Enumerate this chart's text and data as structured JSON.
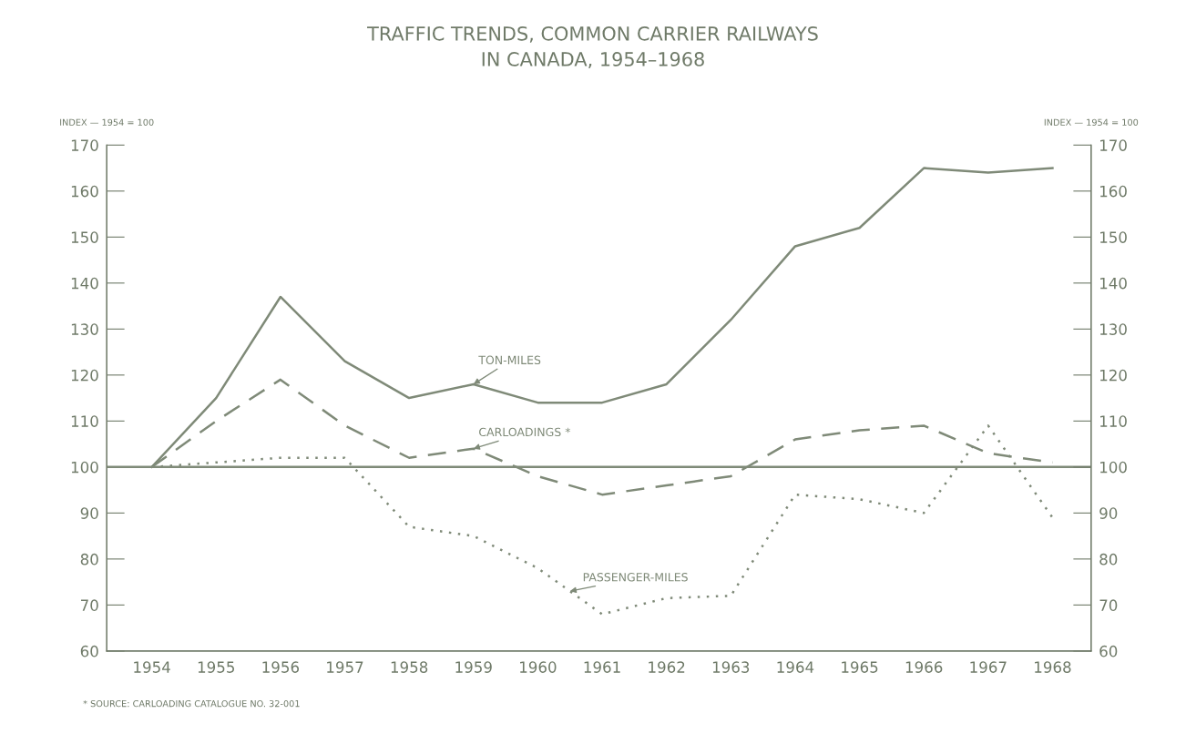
{
  "chart_data": {
    "type": "line",
    "title": "TRAFFIC TRENDS, COMMON CARRIER RAILWAYS\nIN CANADA, 1954–1968",
    "ylabel": "INDEX — 1954 = 100",
    "y2label": "INDEX — 1954 = 100",
    "categories": [
      "1954",
      "1955",
      "1956",
      "1957",
      "1958",
      "1959",
      "1960",
      "1961",
      "1962",
      "1963",
      "1964",
      "1965",
      "1966",
      "1967",
      "1968"
    ],
    "series": [
      {
        "name": "TON-MILES",
        "color": "#7f8a78",
        "line_style": "solid",
        "values": [
          100,
          115,
          137,
          123,
          115,
          118,
          114,
          114,
          118,
          132,
          148,
          152,
          165,
          164,
          165
        ]
      },
      {
        "name": "CARLOADINGS *",
        "color": "#7f8a78",
        "line_style": "dashed",
        "values": [
          100,
          110,
          119,
          109,
          102,
          104,
          98,
          94,
          96,
          98,
          106,
          108,
          109,
          103,
          101
        ]
      },
      {
        "name": "PASSENGER-MILES",
        "color": "#7f8a78",
        "line_style": "dotted",
        "values": [
          100,
          101,
          102,
          102,
          87,
          85,
          78,
          68,
          71.5,
          72,
          94,
          93,
          90,
          109,
          89
        ]
      }
    ],
    "ylim": [
      60,
      170
    ],
    "yticks": [
      60,
      70,
      80,
      90,
      100,
      110,
      120,
      130,
      140,
      150,
      160,
      170
    ],
    "y2lim": [
      60,
      170
    ],
    "y2ticks": [
      60,
      70,
      80,
      90,
      100,
      110,
      120,
      130,
      140,
      150,
      160,
      170
    ],
    "ref_lines": [
      {
        "axis": "y",
        "value": 100,
        "label": null,
        "color": "#7f8a78",
        "line_style": "solid"
      }
    ],
    "grid": false,
    "legend": false,
    "marker": "none",
    "annotations": [
      "* SOURCE: CARLOADING CATALOGUE NO. 32-001"
    ]
  }
}
